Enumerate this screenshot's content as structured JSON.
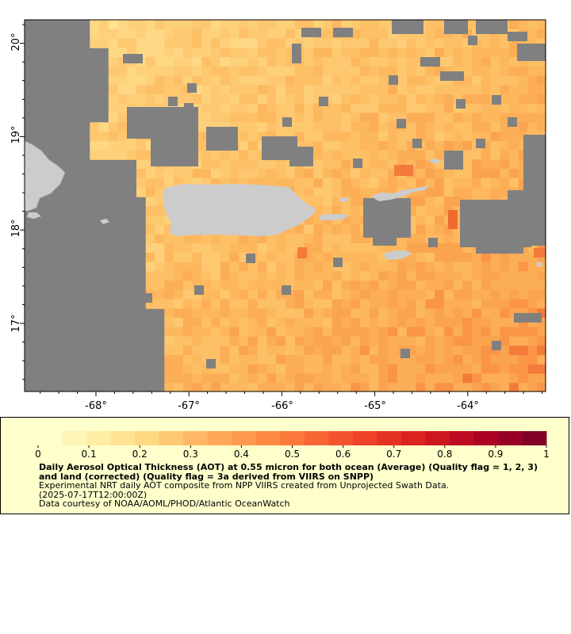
{
  "map": {
    "longitude_labels": [
      "-68°",
      "-67°",
      "-66°",
      "-65°",
      "-64°"
    ],
    "latitude_labels": [
      "17°",
      "18°",
      "19°",
      "20°"
    ],
    "colors": {
      "no_data": "#808080",
      "land": "#cccccc",
      "coast": "#87a9c8"
    }
  },
  "legend": {
    "tick_labels": [
      "0",
      "0.1",
      "0.2",
      "0.3",
      "0.4",
      "0.5",
      "0.6",
      "0.7",
      "0.8",
      "0.9",
      "1"
    ],
    "title": "Daily Aerosol Optical Thickness (AOT) at 0.55 micron for both ocean (Average) (Quality flag = 1, 2, 3) and land (corrected) (Quality flag = 3a derived from VIIRS on SNPP)",
    "description": "Experimental NRT daily AOT composite from NPP VIIRS created from Unprojected Swath Data.",
    "timestamp": "(2025-07-17T12:00:00Z)",
    "credit": "Data courtesy of NOAA/AOML/PHOD/Atlantic OceanWatch",
    "colorbar_colors": [
      "#ffffcc",
      "#fff5b8",
      "#ffeda5",
      "#ffe293",
      "#fed882",
      "#fec873",
      "#feb865",
      "#fea85a",
      "#fd9a4f",
      "#fd8a45",
      "#fc793c",
      "#f96635",
      "#f5532e",
      "#ef4228",
      "#e53122",
      "#da231f",
      "#cc171f",
      "#bd0c22",
      "#ad0225",
      "#990026",
      "#800026"
    ]
  }
}
